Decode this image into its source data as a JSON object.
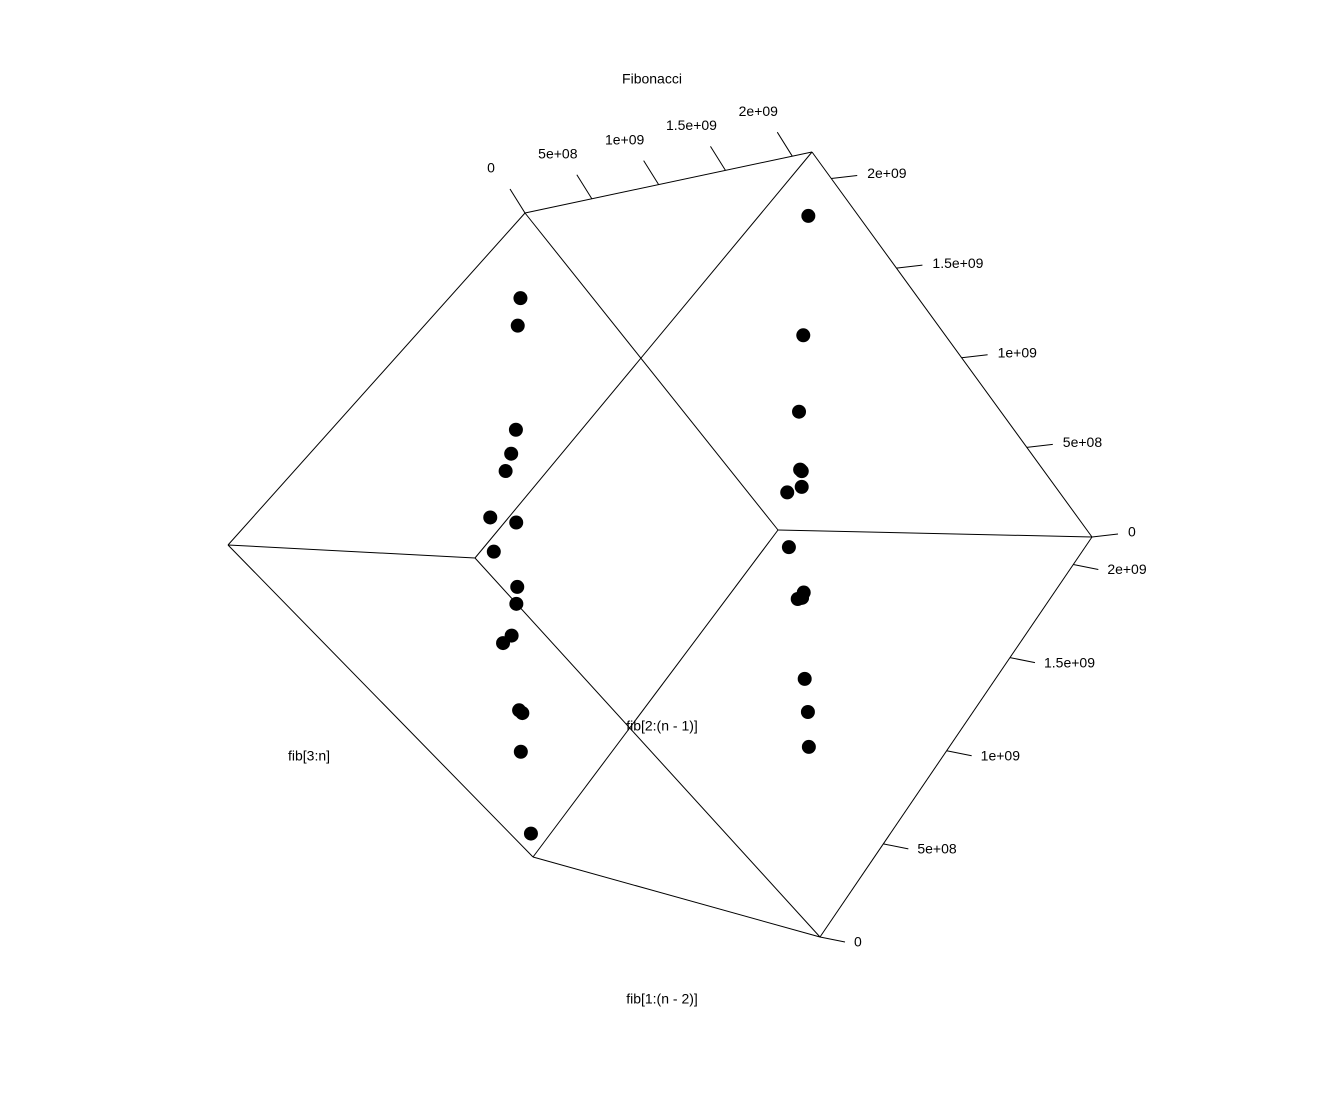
{
  "chart_data": {
    "type": "scatter3d",
    "title": "Fibonacci",
    "xlabel": "fib[1:(n - 2)]",
    "ylabel": "fib[2:(n - 1)]",
    "zlabel": "fib[3:n]",
    "color": "#000000",
    "x": [
      120000000,
      1500000000,
      300000000,
      1900000000,
      700000000,
      2000000000,
      450000000,
      1100000000,
      50000000,
      1750000000,
      900000000,
      1300000000,
      600000000,
      2100000000,
      200000000,
      1600000000,
      1000000000,
      400000000,
      1200000000,
      800000000,
      1400000000,
      1850000000,
      250000000,
      950000000,
      550000000,
      2050000000,
      1650000000,
      350000000,
      1150000000,
      750000000
    ],
    "y": [
      850000000,
      900000000,
      1700000000,
      1400000000,
      200000000,
      1000000000,
      1200000000,
      1800000000,
      60000000,
      300000000,
      900000000,
      1650000000,
      1450000000,
      2000000000,
      400000000,
      1200000000,
      300000000,
      1900000000,
      700000000,
      1550000000,
      100000000,
      650000000,
      1000000000,
      2050000000,
      600000000,
      1700000000,
      250000000,
      2100000000,
      1150000000,
      50000000
    ],
    "z": [
      970000000,
      252520000,
      2000000000,
      1152520000,
      900000000,
      852520000,
      1650000000,
      752520000,
      110000000,
      2050000000,
      1800000000,
      802520000,
      2050000000,
      1952520000,
      600000000,
      652520000,
      1300000000,
      152520000,
      1900000000,
      202520000,
      1500000000,
      352520000,
      1250000000,
      852520000,
      1150000000,
      1602520000,
      1900000000,
      302520000,
      152520000,
      800000000
    ],
    "xlim": [
      0,
      2147483648
    ],
    "ylim": [
      0,
      2147483648
    ],
    "zlim": [
      0,
      2147483648
    ],
    "xticks": [
      0,
      {
        "value": 500000000,
        "label": "5e+08"
      },
      {
        "value": 1000000000,
        "label": "1e+09"
      },
      {
        "value": 1500000000,
        "label": "1.5e+09"
      },
      {
        "value": 2000000000,
        "label": "2e+09"
      }
    ],
    "yticks": [
      0,
      {
        "value": 500000000,
        "label": "5e+08"
      },
      {
        "value": 1000000000,
        "label": "1e+09"
      },
      {
        "value": 1500000000,
        "label": "1.5e+09"
      },
      {
        "value": 2000000000,
        "label": "2e+09"
      }
    ],
    "zticks": [
      0,
      {
        "value": 500000000,
        "label": "5e+08"
      },
      {
        "value": 1000000000,
        "label": "1e+09"
      },
      {
        "value": 1500000000,
        "label": "1.5e+09"
      },
      {
        "value": 2000000000,
        "label": "2e+09"
      }
    ]
  }
}
